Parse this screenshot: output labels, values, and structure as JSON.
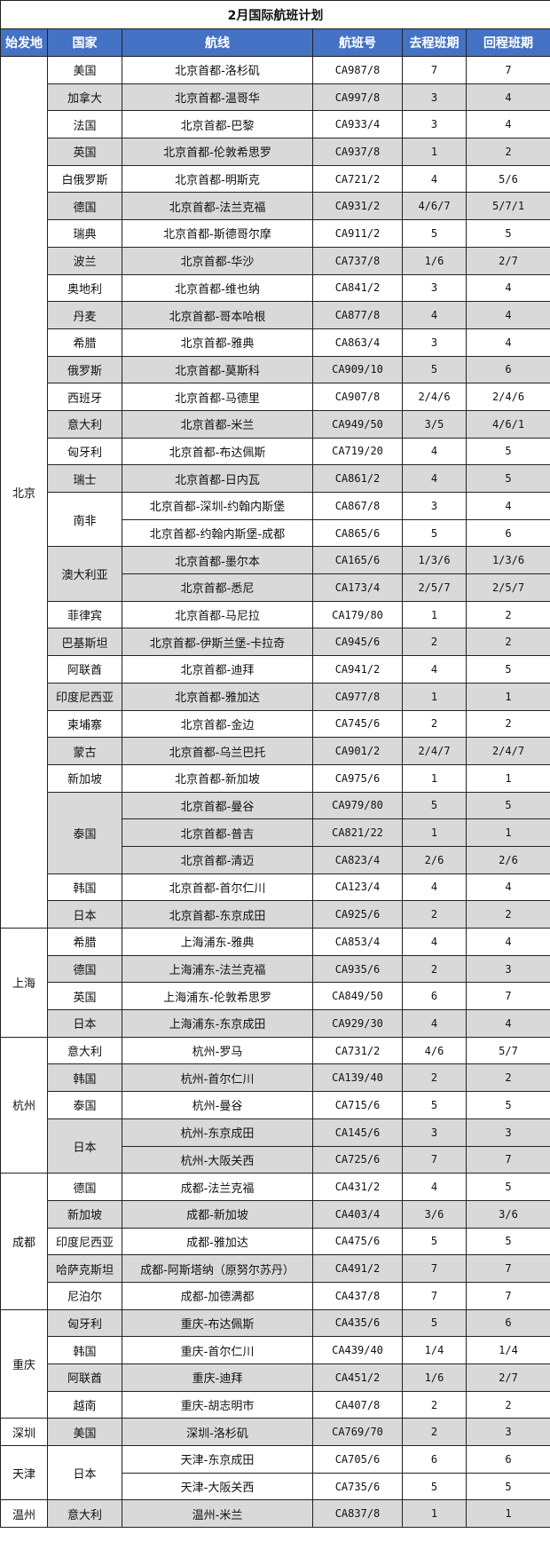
{
  "title": "2月国际航班计划",
  "colors": {
    "header_bg": "#4472c4",
    "header_text": "#ffffff",
    "shade": "#d9d9d9"
  },
  "headers": [
    "始发地",
    "国家",
    "航线",
    "航班号",
    "去程班期",
    "回程班期"
  ],
  "origins": [
    {
      "name": "北京",
      "countries": [
        {
          "name": "美国",
          "routes": [
            [
              "北京首都-洛杉矶",
              "CA987/8",
              "7",
              "7"
            ]
          ]
        },
        {
          "name": "加拿大",
          "routes": [
            [
              "北京首都-温哥华",
              "CA997/8",
              "3",
              "4"
            ]
          ]
        },
        {
          "name": "法国",
          "routes": [
            [
              "北京首都-巴黎",
              "CA933/4",
              "3",
              "4"
            ]
          ]
        },
        {
          "name": "英国",
          "routes": [
            [
              "北京首都-伦敦希思罗",
              "CA937/8",
              "1",
              "2"
            ]
          ]
        },
        {
          "name": "白俄罗斯",
          "routes": [
            [
              "北京首都-明斯克",
              "CA721/2",
              "4",
              "5/6"
            ]
          ]
        },
        {
          "name": "德国",
          "routes": [
            [
              "北京首都-法兰克福",
              "CA931/2",
              "4/6/7",
              "5/7/1"
            ]
          ]
        },
        {
          "name": "瑞典",
          "routes": [
            [
              "北京首都-斯德哥尔摩",
              "CA911/2",
              "5",
              "5"
            ]
          ]
        },
        {
          "name": "波兰",
          "routes": [
            [
              "北京首都-华沙",
              "CA737/8",
              "1/6",
              "2/7"
            ]
          ]
        },
        {
          "name": "奥地利",
          "routes": [
            [
              "北京首都-维也纳",
              "CA841/2",
              "3",
              "4"
            ]
          ]
        },
        {
          "name": "丹麦",
          "routes": [
            [
              "北京首都-哥本哈根",
              "CA877/8",
              "4",
              "4"
            ]
          ]
        },
        {
          "name": "希腊",
          "routes": [
            [
              "北京首都-雅典",
              "CA863/4",
              "3",
              "4"
            ]
          ]
        },
        {
          "name": "俄罗斯",
          "routes": [
            [
              "北京首都-莫斯科",
              "CA909/10",
              "5",
              "6"
            ]
          ]
        },
        {
          "name": "西班牙",
          "routes": [
            [
              "北京首都-马德里",
              "CA907/8",
              "2/4/6",
              "2/4/6"
            ]
          ]
        },
        {
          "name": "意大利",
          "routes": [
            [
              "北京首都-米兰",
              "CA949/50",
              "3/5",
              "4/6/1"
            ]
          ]
        },
        {
          "name": "匈牙利",
          "routes": [
            [
              "北京首都-布达佩斯",
              "CA719/20",
              "4",
              "5"
            ]
          ]
        },
        {
          "name": "瑞士",
          "routes": [
            [
              "北京首都-日内瓦",
              "CA861/2",
              "4",
              "5"
            ]
          ]
        },
        {
          "name": "南非",
          "routes": [
            [
              "北京首都-深圳-约翰内斯堡",
              "CA867/8",
              "3",
              "4"
            ],
            [
              "北京首都-约翰内斯堡-成都",
              "CA865/6",
              "5",
              "6"
            ]
          ]
        },
        {
          "name": "澳大利亚",
          "routes": [
            [
              "北京首都-墨尔本",
              "CA165/6",
              "1/3/6",
              "1/3/6"
            ],
            [
              "北京首都-悉尼",
              "CA173/4",
              "2/5/7",
              "2/5/7"
            ]
          ]
        },
        {
          "name": "菲律宾",
          "routes": [
            [
              "北京首都-马尼拉",
              "CA179/80",
              "1",
              "2"
            ]
          ]
        },
        {
          "name": "巴基斯坦",
          "routes": [
            [
              "北京首都-伊斯兰堡-卡拉奇",
              "CA945/6",
              "2",
              "2"
            ]
          ]
        },
        {
          "name": "阿联酋",
          "routes": [
            [
              "北京首都-迪拜",
              "CA941/2",
              "4",
              "5"
            ]
          ]
        },
        {
          "name": "印度尼西亚",
          "routes": [
            [
              "北京首都-雅加达",
              "CA977/8",
              "1",
              "1"
            ]
          ]
        },
        {
          "name": "柬埔寨",
          "routes": [
            [
              "北京首都-金边",
              "CA745/6",
              "2",
              "2"
            ]
          ]
        },
        {
          "name": "蒙古",
          "routes": [
            [
              "北京首都-乌兰巴托",
              "CA901/2",
              "2/4/7",
              "2/4/7"
            ]
          ]
        },
        {
          "name": "新加坡",
          "routes": [
            [
              "北京首都-新加坡",
              "CA975/6",
              "1",
              "1"
            ]
          ]
        },
        {
          "name": "泰国",
          "routes": [
            [
              "北京首都-曼谷",
              "CA979/80",
              "5",
              "5"
            ],
            [
              "北京首都-普吉",
              "CA821/22",
              "1",
              "1"
            ],
            [
              "北京首都-清迈",
              "CA823/4",
              "2/6",
              "2/6"
            ]
          ]
        },
        {
          "name": "韩国",
          "routes": [
            [
              "北京首都-首尔仁川",
              "CA123/4",
              "4",
              "4"
            ]
          ]
        },
        {
          "name": "日本",
          "routes": [
            [
              "北京首都-东京成田",
              "CA925/6",
              "2",
              "2"
            ]
          ]
        }
      ]
    },
    {
      "name": "上海",
      "countries": [
        {
          "name": "希腊",
          "routes": [
            [
              "上海浦东-雅典",
              "CA853/4",
              "4",
              "4"
            ]
          ]
        },
        {
          "name": "德国",
          "routes": [
            [
              "上海浦东-法兰克福",
              "CA935/6",
              "2",
              "3"
            ]
          ]
        },
        {
          "name": "英国",
          "routes": [
            [
              "上海浦东-伦敦希思罗",
              "CA849/50",
              "6",
              "7"
            ]
          ]
        },
        {
          "name": "日本",
          "routes": [
            [
              "上海浦东-东京成田",
              "CA929/30",
              "4",
              "4"
            ]
          ]
        }
      ]
    },
    {
      "name": "杭州",
      "countries": [
        {
          "name": "意大利",
          "routes": [
            [
              "杭州-罗马",
              "CA731/2",
              "4/6",
              "5/7"
            ]
          ]
        },
        {
          "name": "韩国",
          "routes": [
            [
              "杭州-首尔仁川",
              "CA139/40",
              "2",
              "2"
            ]
          ]
        },
        {
          "name": "泰国",
          "routes": [
            [
              "杭州-曼谷",
              "CA715/6",
              "5",
              "5"
            ]
          ]
        },
        {
          "name": "日本",
          "routes": [
            [
              "杭州-东京成田",
              "CA145/6",
              "3",
              "3"
            ],
            [
              "杭州-大阪关西",
              "CA725/6",
              "7",
              "7"
            ]
          ]
        }
      ]
    },
    {
      "name": "成都",
      "countries": [
        {
          "name": "德国",
          "routes": [
            [
              "成都-法兰克福",
              "CA431/2",
              "4",
              "5"
            ]
          ]
        },
        {
          "name": "新加坡",
          "routes": [
            [
              "成都-新加坡",
              "CA403/4",
              "3/6",
              "3/6"
            ]
          ]
        },
        {
          "name": "印度尼西亚",
          "routes": [
            [
              "成都-雅加达",
              "CA475/6",
              "5",
              "5"
            ]
          ]
        },
        {
          "name": "哈萨克斯坦",
          "routes": [
            [
              "成都-阿斯塔纳（原努尔苏丹）",
              "CA491/2",
              "7",
              "7"
            ]
          ]
        },
        {
          "name": "尼泊尔",
          "routes": [
            [
              "成都-加德满都",
              "CA437/8",
              "7",
              "7"
            ]
          ]
        }
      ]
    },
    {
      "name": "重庆",
      "countries": [
        {
          "name": "匈牙利",
          "routes": [
            [
              "重庆-布达佩斯",
              "CA435/6",
              "5",
              "6"
            ]
          ]
        },
        {
          "name": "韩国",
          "routes": [
            [
              "重庆-首尔仁川",
              "CA439/40",
              "1/4",
              "1/4"
            ]
          ]
        },
        {
          "name": "阿联酋",
          "routes": [
            [
              "重庆-迪拜",
              "CA451/2",
              "1/6",
              "2/7"
            ]
          ]
        },
        {
          "name": "越南",
          "routes": [
            [
              "重庆-胡志明市",
              "CA407/8",
              "2",
              "2"
            ]
          ]
        }
      ]
    },
    {
      "name": "深圳",
      "countries": [
        {
          "name": "美国",
          "routes": [
            [
              "深圳-洛杉矶",
              "CA769/70",
              "2",
              "3"
            ]
          ]
        }
      ]
    },
    {
      "name": "天津",
      "countries": [
        {
          "name": "日本",
          "routes": [
            [
              "天津-东京成田",
              "CA705/6",
              "6",
              "6"
            ],
            [
              "天津-大阪关西",
              "CA735/6",
              "5",
              "5"
            ]
          ]
        }
      ]
    },
    {
      "name": "温州",
      "countries": [
        {
          "name": "意大利",
          "routes": [
            [
              "温州-米兰",
              "CA837/8",
              "1",
              "1"
            ]
          ]
        }
      ]
    }
  ]
}
